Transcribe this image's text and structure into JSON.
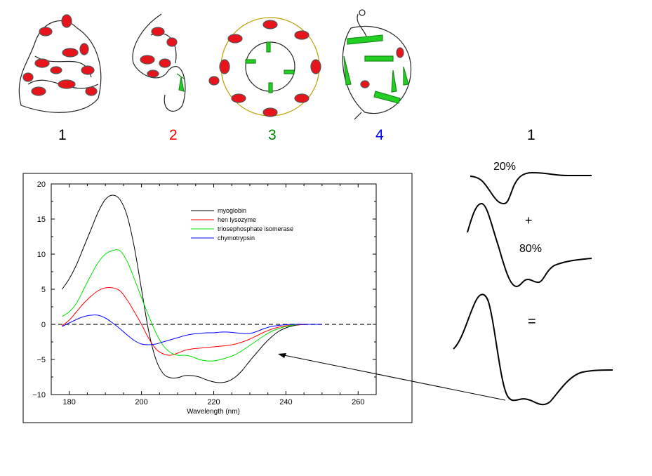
{
  "structure_labels": [
    {
      "text": "1",
      "color": "#000000"
    },
    {
      "text": "2",
      "color": "#ff0000"
    },
    {
      "text": "3",
      "color": "#008000"
    },
    {
      "text": "4",
      "color": "#0000ff"
    },
    {
      "text": "1",
      "color": "#000000"
    }
  ],
  "decomposition": {
    "part1": "20%",
    "plus": "+",
    "part2": "80%",
    "equals": "="
  },
  "chart_data": {
    "type": "line",
    "title": "",
    "xlabel": "Wavelength (nm)",
    "ylabel": "",
    "xlim": [
      175,
      265
    ],
    "ylim": [
      -10,
      20
    ],
    "xticks": [
      180,
      200,
      220,
      240,
      260
    ],
    "yticks": [
      -10,
      -5,
      0,
      5,
      10,
      15,
      20
    ],
    "legend_position": "top-center",
    "zero_line": "dashed",
    "x": [
      178,
      180,
      182,
      184,
      186,
      188,
      190,
      192,
      194,
      196,
      198,
      200,
      202,
      204,
      206,
      208,
      210,
      212,
      214,
      216,
      218,
      220,
      222,
      224,
      226,
      228,
      230,
      232,
      234,
      236,
      238,
      240,
      242,
      244,
      246,
      250
    ],
    "series": [
      {
        "name": "myoglobin",
        "color": "#000000",
        "values": [
          5,
          6.5,
          8.5,
          11,
          13.5,
          16,
          17.8,
          18.4,
          17.8,
          15.5,
          11,
          5,
          -1,
          -5,
          -7,
          -7.6,
          -7.6,
          -7.3,
          -7.3,
          -7.5,
          -7.9,
          -8.2,
          -8.3,
          -8.1,
          -7.5,
          -6.5,
          -5.2,
          -4,
          -2.8,
          -1.8,
          -1,
          -0.5,
          -0.2,
          -0.05,
          0,
          0
        ]
      },
      {
        "name": "hen lysozyme",
        "color": "#ff0000",
        "values": [
          -0.2,
          0.6,
          1.8,
          3,
          4,
          4.8,
          5.2,
          5.2,
          4.8,
          3.5,
          1.8,
          0,
          -2,
          -3.5,
          -4.2,
          -4.4,
          -4.1,
          -3.7,
          -3.5,
          -3.4,
          -3.3,
          -3.2,
          -3.1,
          -3,
          -2.8,
          -2.5,
          -2.1,
          -1.6,
          -1.1,
          -0.7,
          -0.4,
          -0.2,
          -0.1,
          -0.05,
          0,
          0
        ]
      },
      {
        "name": "triosephosphate isomerase",
        "color": "#00e000",
        "values": [
          1.1,
          1.8,
          3,
          5,
          7,
          8.8,
          10,
          10.5,
          10.5,
          9,
          6.5,
          3.8,
          1.2,
          -1.2,
          -3,
          -4,
          -4.4,
          -4.4,
          -4.6,
          -5,
          -5.2,
          -5.2,
          -5,
          -4.7,
          -4.3,
          -3.7,
          -3,
          -2.3,
          -1.6,
          -1,
          -0.6,
          -0.3,
          -0.1,
          0,
          0,
          0
        ]
      },
      {
        "name": "chymotrypsin",
        "color": "#0000ff",
        "values": [
          -0.3,
          0.2,
          0.7,
          1.1,
          1.3,
          1.3,
          0.9,
          0.2,
          -0.6,
          -1.5,
          -2.3,
          -2.8,
          -2.9,
          -2.8,
          -2.5,
          -2.2,
          -1.9,
          -1.6,
          -1.4,
          -1.3,
          -1.2,
          -1.2,
          -1.1,
          -1.1,
          -1.2,
          -1.3,
          -1.3,
          -1,
          -0.6,
          -0.3,
          -0.15,
          -0.05,
          0,
          0,
          0,
          0
        ]
      }
    ]
  }
}
